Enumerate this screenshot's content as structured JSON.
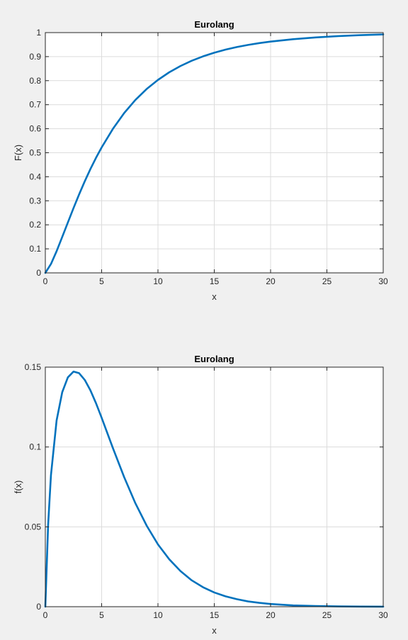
{
  "chart_data": [
    {
      "type": "line",
      "title": "Eurolang",
      "xlabel": "x",
      "ylabel": "F(x)",
      "xlim": [
        0,
        30
      ],
      "ylim": [
        0,
        1
      ],
      "xticks": [
        0,
        5,
        10,
        15,
        20,
        25,
        30
      ],
      "xtick_labels": [
        "0",
        "5",
        "10",
        "15",
        "20",
        "25",
        "30"
      ],
      "yticks": [
        0,
        0.1,
        0.2,
        0.3,
        0.4,
        0.5,
        0.6,
        0.7,
        0.8,
        0.9,
        1
      ],
      "ytick_labels": [
        "0",
        "0.1",
        "0.2",
        "0.3",
        "0.4",
        "0.5",
        "0.6",
        "0.7",
        "0.8",
        "0.9",
        "1"
      ],
      "grid": true,
      "line_color": "#0072bd",
      "series": [
        {
          "x": [
            0,
            0.5,
            1,
            1.5,
            2,
            2.5,
            3,
            3.5,
            4,
            4.5,
            5,
            6,
            7,
            8,
            9,
            10,
            11,
            12,
            13,
            14,
            15,
            16,
            17,
            18,
            19,
            20,
            22,
            24,
            26,
            28,
            30
          ],
          "y": [
            0,
            0.0369,
            0.0902,
            0.1495,
            0.2096,
            0.2694,
            0.3268,
            0.3811,
            0.4319,
            0.4789,
            0.5221,
            0.5995,
            0.6651,
            0.7199,
            0.7654,
            0.8031,
            0.8348,
            0.861,
            0.8829,
            0.9011,
            0.9164,
            0.9291,
            0.9398,
            0.9487,
            0.9563,
            0.9626,
            0.9725,
            0.9799,
            0.9855,
            0.9895,
            0.9925
          ]
        }
      ]
    },
    {
      "type": "line",
      "title": "Eurolang",
      "xlabel": "x",
      "ylabel": "f(x)",
      "xlim": [
        0,
        30
      ],
      "ylim": [
        0,
        0.15
      ],
      "xticks": [
        0,
        5,
        10,
        15,
        20,
        25,
        30
      ],
      "xtick_labels": [
        "0",
        "5",
        "10",
        "15",
        "20",
        "25",
        "30"
      ],
      "yticks": [
        0,
        0.05,
        0.1,
        0.15
      ],
      "ytick_labels": [
        "0",
        "0.05",
        "0.1",
        "0.15"
      ],
      "grid": true,
      "line_color": "#0072bd",
      "series": [
        {
          "x": [
            0,
            0.25,
            0.5,
            1,
            1.5,
            2,
            2.5,
            3,
            3.5,
            4,
            4.5,
            5,
            6,
            7,
            8,
            9,
            10,
            11,
            12,
            13,
            14,
            15,
            16,
            17,
            18,
            19,
            20,
            22,
            24,
            26,
            28,
            30
          ],
          "y": [
            0,
            0.0515,
            0.0824,
            0.1166,
            0.1343,
            0.1436,
            0.1472,
            0.1462,
            0.142,
            0.1355,
            0.1274,
            0.1183,
            0.0993,
            0.0811,
            0.0647,
            0.0507,
            0.039,
            0.0297,
            0.0223,
            0.0165,
            0.0122,
            0.0089,
            0.0065,
            0.0047,
            0.0033,
            0.0024,
            0.0017,
            0.0008,
            0.0004,
            0.0002,
            0.0001,
            5e-05
          ]
        }
      ]
    }
  ]
}
